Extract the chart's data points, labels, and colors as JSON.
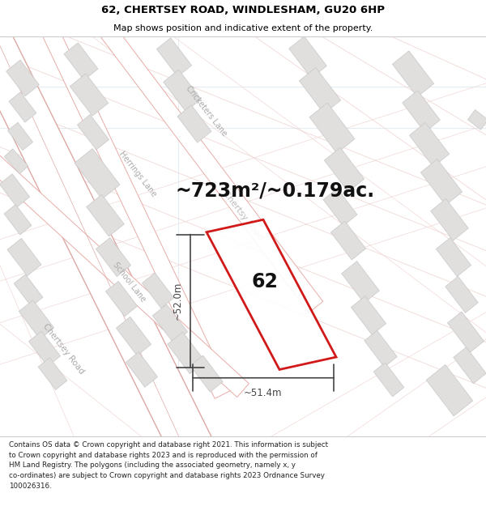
{
  "title_line1": "62, CHERTSEY ROAD, WINDLESHAM, GU20 6HP",
  "title_line2": "Map shows position and indicative extent of the property.",
  "area_text": "~723m²/~0.179ac.",
  "property_number": "62",
  "dim_height": "~52.0m",
  "dim_width": "~51.4m",
  "footer_text": "Contains OS data © Crown copyright and database right 2021. This information is subject\nto Crown copyright and database rights 2023 and is reproduced with the permission of\nHM Land Registry. The polygons (including the associated geometry, namely x, y\nco-ordinates) are subject to Crown copyright and database rights 2023 Ordnance Survey\n100026316.",
  "map_bg": "#f2f1f0",
  "road_color": "#e8aca8",
  "road_color2": "#dda8a4",
  "road_light": "#f0d8d6",
  "building_fill": "#e0dfde",
  "building_edge": "#c8c8c8",
  "polygon_color": "#cc0000",
  "dim_color": "#444444",
  "road_label_color": "#aaaaaa",
  "title_color": "#000000",
  "footer_color": "#222222",
  "title_fontsize": 9.5,
  "subtitle_fontsize": 8.0,
  "footer_fontsize": 6.3,
  "area_fontsize": 17,
  "number_fontsize": 17,
  "dim_fontsize": 8.5,
  "road_label_fontsize": 7.5
}
